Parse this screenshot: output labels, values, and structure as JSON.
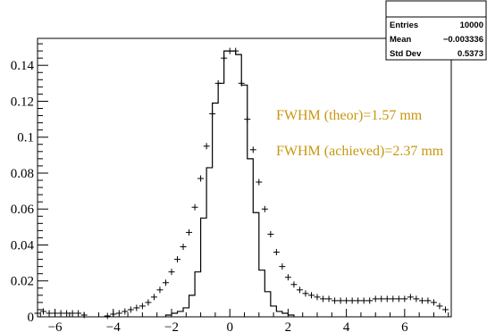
{
  "stats_box": {
    "rows": [
      {
        "label": "Entries",
        "value": "10000"
      },
      {
        "label": "Mean",
        "value": "−0.003336"
      },
      {
        "label": "Std Dev",
        "value": "0.5373"
      }
    ]
  },
  "annotations": [
    {
      "text": "FWHM (theor)=1.57 mm",
      "color": "#c8960f"
    },
    {
      "text": "FWHM (achieved)=2.37 mm",
      "color": "#c8960f"
    }
  ],
  "chart_data": {
    "type": "histogram",
    "title": "",
    "xlabel": "",
    "ylabel": "",
    "xlim": [
      -6.6,
      7.6
    ],
    "ylim": [
      0,
      0.155
    ],
    "x_ticks": [
      -6,
      -4,
      -2,
      0,
      2,
      4,
      6
    ],
    "x_tick_labels": [
      "−6",
      "−4",
      "−2",
      "0",
      "2",
      "4",
      "6"
    ],
    "y_ticks": [
      0,
      0.02,
      0.04,
      0.06,
      0.08,
      0.1,
      0.12,
      0.14
    ],
    "y_tick_labels": [
      "0",
      "0.02",
      "0.04",
      "0.06",
      "0.08",
      "0.1",
      "0.12",
      "0.14"
    ],
    "grid": false,
    "series": [
      {
        "style": "step",
        "color": "#000000",
        "bin_edges": [
          -2.2,
          -2.0,
          -1.8,
          -1.6,
          -1.4,
          -1.2,
          -1.0,
          -0.8,
          -0.6,
          -0.4,
          -0.2,
          0.0,
          0.2,
          0.4,
          0.6,
          0.8,
          1.0,
          1.2,
          1.4,
          1.6,
          1.8,
          2.0,
          2.2
        ],
        "values": [
          0.001,
          0.002,
          0.003,
          0.005,
          0.012,
          0.025,
          0.055,
          0.083,
          0.119,
          0.13,
          0.148,
          0.148,
          0.146,
          0.129,
          0.088,
          0.058,
          0.026,
          0.014,
          0.006,
          0.003,
          0.002,
          0.001
        ]
      },
      {
        "style": "markers",
        "marker": "cross",
        "color": "#000000",
        "x": [
          -6.6,
          -6.4,
          -6.2,
          -6.0,
          -5.8,
          -5.6,
          -5.4,
          -5.2,
          -5.0,
          -4.2,
          -4.0,
          -3.8,
          -3.6,
          -3.4,
          -3.2,
          -3.0,
          -2.8,
          -2.6,
          -2.4,
          -2.2,
          -2.0,
          -1.8,
          -1.6,
          -1.4,
          -1.2,
          -1.0,
          -0.8,
          -0.6,
          -0.4,
          -0.2,
          0.0,
          0.2,
          0.4,
          0.6,
          0.8,
          1.0,
          1.2,
          1.4,
          1.6,
          1.8,
          2.0,
          2.2,
          2.4,
          2.6,
          2.8,
          3.0,
          3.2,
          3.4,
          3.6,
          3.8,
          4.0,
          4.2,
          4.4,
          4.6,
          4.8,
          5.0,
          5.2,
          5.4,
          5.6,
          5.8,
          6.0,
          6.2,
          6.4,
          6.6,
          6.8,
          7.0,
          7.2,
          7.4
        ],
        "y": [
          0.002,
          0.003,
          0.002,
          0.002,
          0.002,
          0.002,
          0.002,
          0.002,
          0.001,
          0.0005,
          0.0015,
          0.002,
          0.003,
          0.004,
          0.005,
          0.006,
          0.008,
          0.011,
          0.015,
          0.019,
          0.025,
          0.032,
          0.039,
          0.047,
          0.061,
          0.077,
          0.095,
          0.113,
          0.13,
          0.144,
          0.148,
          0.148,
          0.13,
          0.11,
          0.093,
          0.075,
          0.06,
          0.046,
          0.036,
          0.028,
          0.022,
          0.018,
          0.015,
          0.013,
          0.012,
          0.011,
          0.01,
          0.01,
          0.009,
          0.009,
          0.009,
          0.009,
          0.009,
          0.009,
          0.009,
          0.01,
          0.01,
          0.01,
          0.01,
          0.01,
          0.01,
          0.011,
          0.01,
          0.009,
          0.009,
          0.008,
          0.006,
          0.004
        ]
      }
    ]
  }
}
